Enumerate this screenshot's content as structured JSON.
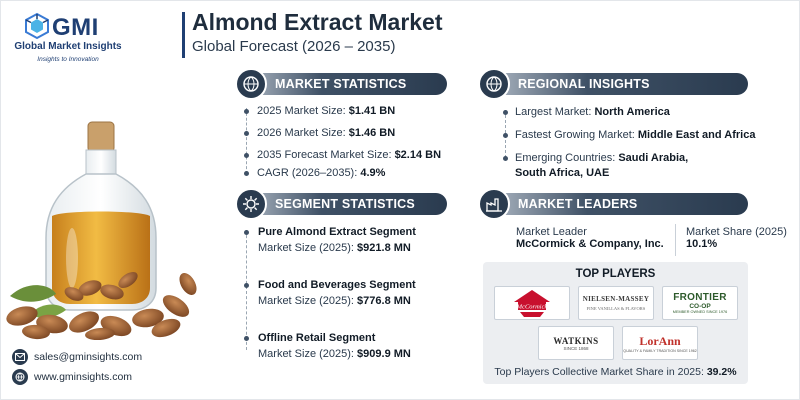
{
  "brand": {
    "logo_text": "GMI",
    "name": "Global Market Insights",
    "tagline": "Insights to Innovation"
  },
  "header": {
    "title": "Almond Extract Market",
    "subtitle": "Global Forecast (2026 – 2035)"
  },
  "market_statistics": {
    "label": "MARKET STATISTICS",
    "icon": "globe-dollar-icon",
    "items": [
      {
        "label": "2025 Market Size: ",
        "value": "$1.41 BN"
      },
      {
        "label": "2026 Market Size: ",
        "value": "$1.46 BN"
      },
      {
        "label": "2035 Forecast Market Size: ",
        "value": "$2.14 BN"
      },
      {
        "label": "CAGR (2026–2035): ",
        "value": "4.9%"
      }
    ]
  },
  "regional_insights": {
    "label": "REGIONAL INSIGHTS",
    "icon": "globe-icon",
    "items": [
      {
        "label": "Largest Market: ",
        "value": "North America"
      },
      {
        "label": "Fastest Growing Market: ",
        "value": "Middle East and Africa"
      },
      {
        "label": "Emerging Countries: ",
        "value": "Saudi Arabia,",
        "value2": "South Africa, UAE"
      }
    ]
  },
  "segment_statistics": {
    "label": "SEGMENT STATISTICS",
    "icon": "gear-chart-icon",
    "items": [
      {
        "name": "Pure Almond Extract Segment",
        "size_label": "Market Size (2025): ",
        "value": "$921.8 MN"
      },
      {
        "name": "Food and Beverages Segment",
        "size_label": "Market Size (2025): ",
        "value": "$776.8 MN"
      },
      {
        "name": "Offline Retail Segment",
        "size_label": "Market Size (2025): ",
        "value": "$909.9 MN"
      }
    ]
  },
  "market_leaders": {
    "label": "MARKET LEADERS",
    "icon": "factory-icon",
    "leader_label": "Market Leader",
    "leader_value": "McCormick & Company, Inc.",
    "share_label": "Market Share (2025)",
    "share_value": "10.1%"
  },
  "top_players": {
    "title": "TOP PLAYERS",
    "logos": [
      {
        "name": "McCormick",
        "icon": "mccormick-logo"
      },
      {
        "name": "NIELSEN-MASSEY",
        "sub": "FINE VANILLAS & FLAVORS",
        "icon": "nielsen-massey-logo"
      },
      {
        "name": "FRONTIER",
        "sub": "CO-OP",
        "sub2": "MEMBER OWNED SINCE 1976",
        "icon": "frontier-coop-logo"
      },
      {
        "name": "WATKINS",
        "sub": "SINCE 1868",
        "icon": "watkins-logo"
      },
      {
        "name": "LorAnn",
        "sub": "QUALITY & FAMILY TRADITION SINCE 1962",
        "icon": "lorann-logo"
      }
    ],
    "note_label": "Top Players Collective Market Share in 2025: ",
    "note_value": "39.2%"
  },
  "contact": {
    "email": "sales@gminsights.com",
    "email_icon": "envelope-icon",
    "website": "www.gminsights.com",
    "website_icon": "globe-icon"
  },
  "colors": {
    "navy": "#1f3f73",
    "pill_dark": "#2a3b4f",
    "panel": "#eceef1"
  }
}
